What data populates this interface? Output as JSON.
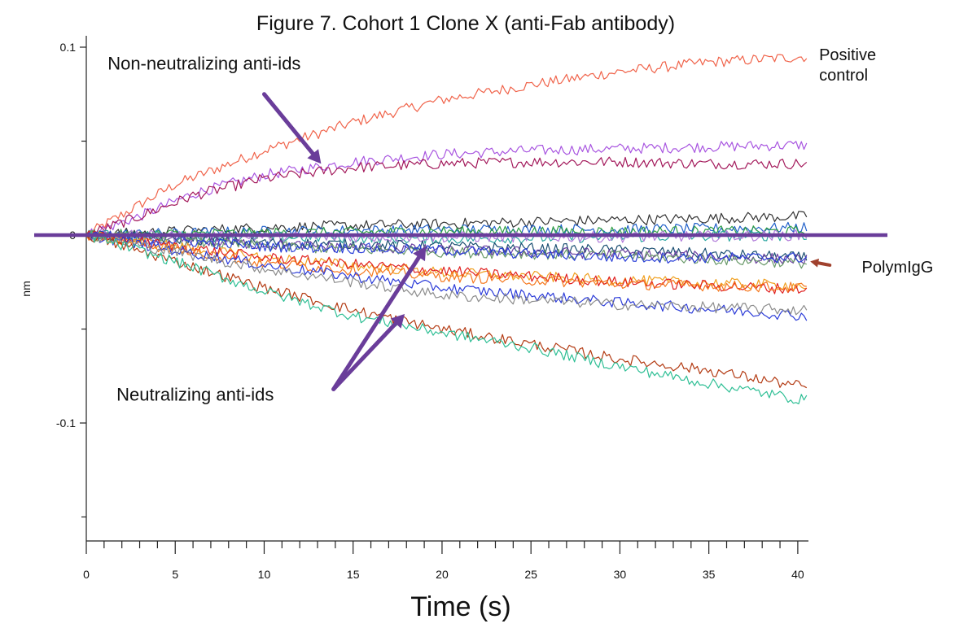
{
  "chart_data": {
    "type": "line",
    "title": "Figure 7. Cohort 1 Clone X (anti-Fab antibody)",
    "xlabel": "Time (s)",
    "ylabel": "nm",
    "xlim": [
      0,
      40.6
    ],
    "ylim": [
      -0.16,
      0.11
    ],
    "x_ticks": [
      0,
      5,
      10,
      15,
      20,
      25,
      30,
      35,
      40
    ],
    "y_ticks": [
      {
        "value": 0.1,
        "label": "0.1"
      },
      {
        "value": 0,
        "label": "0"
      },
      {
        "value": -0.1,
        "label": "-0.1"
      }
    ],
    "grid": false,
    "reference_line": {
      "y": 0,
      "color": "#6a3d9a"
    },
    "annotations": [
      {
        "id": "non-neutralizing",
        "lines": [
          "Non-neutralizing anti-ids"
        ],
        "text_at": [
          1.2,
          0.088
        ],
        "arrows_to": [
          [
            13.2,
            0.038
          ]
        ],
        "arrow_from": [
          10,
          0.075
        ],
        "color": "#6a3d9a",
        "size": "large"
      },
      {
        "id": "neutralizing",
        "lines": [
          "Neutralizing anti-ids"
        ],
        "text_at": [
          1.7,
          -0.088
        ],
        "arrows_to": [
          [
            19.1,
            -0.006
          ],
          [
            17.9,
            -0.042
          ]
        ],
        "arrow_from": [
          13.9,
          -0.082
        ],
        "color": "#6a3d9a",
        "size": "large"
      },
      {
        "id": "positive-control",
        "lines": [
          "Positive",
          "control"
        ],
        "text_at": [
          41.2,
          0.093
        ],
        "color": "#111111",
        "size": "small"
      },
      {
        "id": "polymigg",
        "lines": [
          "PolymIgG"
        ],
        "text_at": [
          43.6,
          -0.02
        ],
        "arrow_from": [
          41.8,
          -0.016
        ],
        "arrows_to": [
          [
            40.7,
            -0.014
          ]
        ],
        "color": "#a0412d",
        "size": "small"
      }
    ],
    "series": [
      {
        "color": "#f0634a",
        "points": [
          [
            0,
            0
          ],
          [
            5,
            0.027
          ],
          [
            10,
            0.045
          ],
          [
            15,
            0.06
          ],
          [
            20,
            0.072
          ],
          [
            25,
            0.08
          ],
          [
            30,
            0.087
          ],
          [
            35,
            0.092
          ],
          [
            40.5,
            0.095
          ]
        ]
      },
      {
        "color": "#a855e0",
        "points": [
          [
            0,
            0
          ],
          [
            3,
            0.01
          ],
          [
            6,
            0.022
          ],
          [
            10,
            0.032
          ],
          [
            15,
            0.039
          ],
          [
            20,
            0.043
          ],
          [
            25,
            0.045
          ],
          [
            30,
            0.046
          ],
          [
            35,
            0.047
          ],
          [
            40.5,
            0.048
          ]
        ]
      },
      {
        "color": "#a3195b",
        "points": [
          [
            0,
            0
          ],
          [
            3,
            0.01
          ],
          [
            6,
            0.021
          ],
          [
            10,
            0.03
          ],
          [
            15,
            0.036
          ],
          [
            20,
            0.038
          ],
          [
            25,
            0.039
          ],
          [
            30,
            0.039
          ],
          [
            35,
            0.038
          ],
          [
            40.5,
            0.038
          ]
        ]
      },
      {
        "color": "#333333",
        "points": [
          [
            0,
            0
          ],
          [
            10,
            0.004
          ],
          [
            20,
            0.006
          ],
          [
            30,
            0.008
          ],
          [
            40.5,
            0.01
          ]
        ]
      },
      {
        "color": "#1f5fc9",
        "points": [
          [
            0,
            0
          ],
          [
            10,
            0.002
          ],
          [
            20,
            0.003
          ],
          [
            30,
            0.003
          ],
          [
            40.5,
            0.004
          ]
        ]
      },
      {
        "color": "#2e9e44",
        "points": [
          [
            0,
            0
          ],
          [
            10,
            0.001
          ],
          [
            20,
            0.002
          ],
          [
            30,
            0.002
          ],
          [
            40.5,
            0.002
          ]
        ]
      },
      {
        "color": "#2aa6a0",
        "points": [
          [
            0,
            0
          ],
          [
            10,
            -0.001
          ],
          [
            20,
            -0.002
          ],
          [
            30,
            -0.001
          ],
          [
            40.5,
            0
          ]
        ]
      },
      {
        "color": "#b07ad9",
        "points": [
          [
            0,
            0
          ],
          [
            10,
            -0.001
          ],
          [
            20,
            -0.001
          ],
          [
            30,
            -0.001
          ],
          [
            40.5,
            0
          ]
        ]
      },
      {
        "color": "#1b4f72",
        "points": [
          [
            0,
            0
          ],
          [
            10,
            -0.004
          ],
          [
            20,
            -0.006
          ],
          [
            30,
            -0.008
          ],
          [
            40.5,
            -0.012
          ]
        ]
      },
      {
        "color": "#6b3fa0",
        "points": [
          [
            0,
            0
          ],
          [
            10,
            -0.005
          ],
          [
            20,
            -0.008
          ],
          [
            30,
            -0.01
          ],
          [
            40.5,
            -0.013
          ]
        ]
      },
      {
        "color": "#6a9a6a",
        "points": [
          [
            0,
            0
          ],
          [
            10,
            -0.006
          ],
          [
            20,
            -0.009
          ],
          [
            30,
            -0.011
          ],
          [
            40.5,
            -0.015
          ]
        ]
      },
      {
        "color": "#2a3fd8",
        "points": [
          [
            0,
            0
          ],
          [
            10,
            -0.006
          ],
          [
            20,
            -0.008
          ],
          [
            30,
            -0.012
          ],
          [
            40.5,
            -0.012
          ]
        ]
      },
      {
        "color": "#f0a020",
        "points": [
          [
            0,
            0
          ],
          [
            10,
            -0.012
          ],
          [
            20,
            -0.02
          ],
          [
            30,
            -0.024
          ],
          [
            40.5,
            -0.027
          ]
        ]
      },
      {
        "color": "#e02020",
        "points": [
          [
            0,
            0
          ],
          [
            10,
            -0.012
          ],
          [
            20,
            -0.019
          ],
          [
            30,
            -0.025
          ],
          [
            40.5,
            -0.029
          ]
        ]
      },
      {
        "color": "#f5781e",
        "points": [
          [
            0,
            0
          ],
          [
            10,
            -0.015
          ],
          [
            20,
            -0.022
          ],
          [
            30,
            -0.026
          ],
          [
            40.5,
            -0.028
          ]
        ]
      },
      {
        "color": "#2a3ad8",
        "points": [
          [
            0,
            0
          ],
          [
            10,
            -0.016
          ],
          [
            20,
            -0.028
          ],
          [
            30,
            -0.036
          ],
          [
            40.5,
            -0.043
          ]
        ]
      },
      {
        "color": "#8c8c8c",
        "points": [
          [
            0,
            0
          ],
          [
            10,
            -0.018
          ],
          [
            20,
            -0.032
          ],
          [
            30,
            -0.037
          ],
          [
            40.5,
            -0.04
          ]
        ]
      },
      {
        "color": "#b33a12",
        "points": [
          [
            0,
            0
          ],
          [
            5,
            -0.014
          ],
          [
            10,
            -0.028
          ],
          [
            15,
            -0.04
          ],
          [
            20,
            -0.05
          ],
          [
            25,
            -0.058
          ],
          [
            30,
            -0.066
          ],
          [
            35,
            -0.072
          ],
          [
            40.5,
            -0.081
          ]
        ]
      },
      {
        "color": "#2fbf95",
        "points": [
          [
            0,
            0
          ],
          [
            5,
            -0.014
          ],
          [
            10,
            -0.03
          ],
          [
            15,
            -0.043
          ],
          [
            20,
            -0.052
          ],
          [
            25,
            -0.06
          ],
          [
            30,
            -0.07
          ],
          [
            35,
            -0.079
          ],
          [
            40.5,
            -0.088
          ]
        ]
      }
    ]
  }
}
